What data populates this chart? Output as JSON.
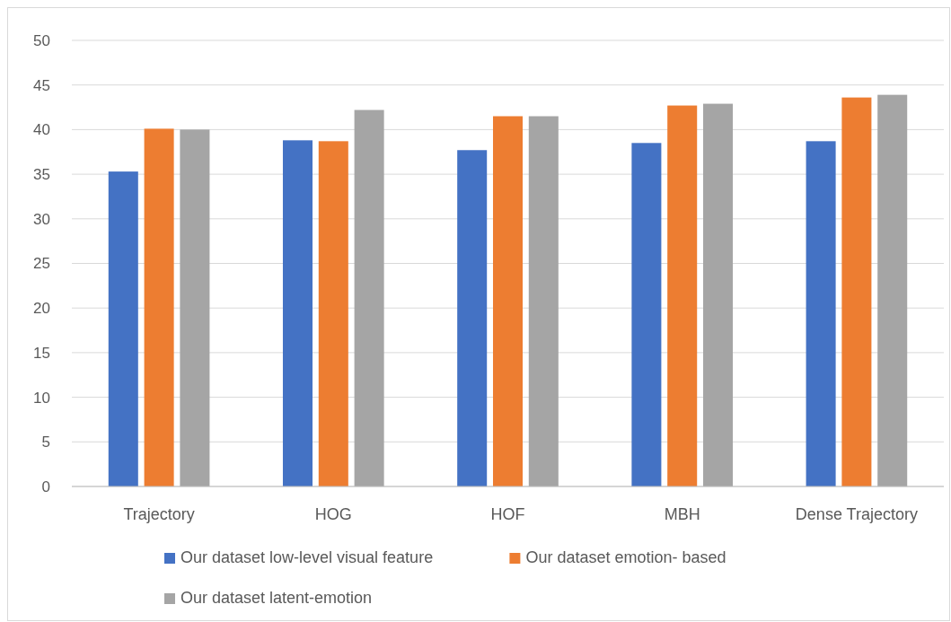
{
  "chart_data": {
    "type": "bar",
    "categories": [
      "Trajectory",
      "HOG",
      "HOF",
      "MBH",
      "Dense Trajectory"
    ],
    "series": [
      {
        "name": "Our dataset low-level visual feature",
        "color": "#4472c4",
        "values": [
          35.3,
          38.8,
          37.7,
          38.5,
          38.7
        ]
      },
      {
        "name": "Our dataset emotion- based",
        "color": "#ed7d31",
        "values": [
          40.1,
          38.7,
          41.5,
          42.7,
          43.6
        ]
      },
      {
        "name": "Our dataset latent-emotion",
        "color": "#a5a5a5",
        "values": [
          40.0,
          42.2,
          41.5,
          42.9,
          43.9
        ]
      }
    ],
    "ylim": [
      0,
      50
    ],
    "yticks": [
      0,
      5,
      10,
      15,
      20,
      25,
      30,
      35,
      40,
      45,
      50
    ],
    "grid": "y",
    "legend": "bottom"
  }
}
